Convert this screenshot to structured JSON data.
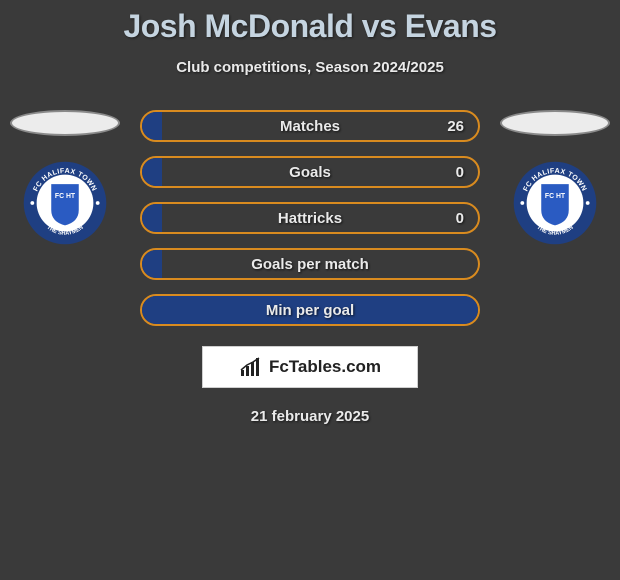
{
  "title": "Josh McDonald vs Evans",
  "subtitle": "Club competitions, Season 2024/2025",
  "date": "21 february 2025",
  "brand": "FcTables.com",
  "crest": {
    "top_text": "FC HALIFAX TOWN",
    "bottom_text": "THE SHAYMEN",
    "initials": "FC HT",
    "outer_color": "#1f3f82",
    "inner_color": "#ffffff",
    "shield_color": "#2a5bc2"
  },
  "colors": {
    "bar_border": "#d98b1f",
    "bar_fill": "#1f3f82",
    "title_color": "#c5d4e0",
    "background": "#3a3a3a"
  },
  "stats": [
    {
      "label": "Matches",
      "value": "26",
      "fill_pct": 6
    },
    {
      "label": "Goals",
      "value": "0",
      "fill_pct": 6
    },
    {
      "label": "Hattricks",
      "value": "0",
      "fill_pct": 6
    },
    {
      "label": "Goals per match",
      "value": "",
      "fill_pct": 6
    },
    {
      "label": "Min per goal",
      "value": "",
      "fill_pct": 100
    }
  ]
}
